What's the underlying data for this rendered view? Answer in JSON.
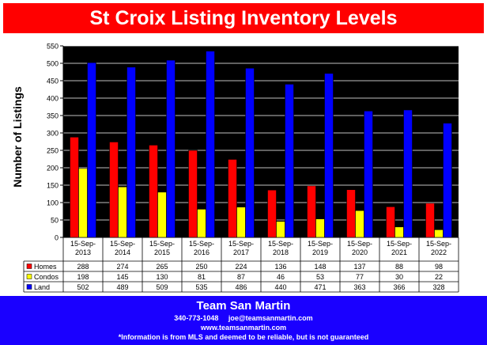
{
  "title": "St Croix Listing Inventory Levels",
  "footer": {
    "name": "Team San Martin",
    "phone": "340-773-1048",
    "email": "joe@teamsanmartin.com",
    "website": "www.teamsanmartin.com",
    "disclaimer": "*Information is from MLS and deemed to be reliable, but is not guaranteed"
  },
  "colors": {
    "title_bg": "#ff0000",
    "footer_bg": "#1a00ff",
    "plot_bg": "#000000"
  },
  "chart_data": {
    "type": "bar",
    "ylabel": "Number of Listings",
    "ylim": [
      0,
      550
    ],
    "yticks": [
      0,
      50,
      100,
      150,
      200,
      250,
      300,
      350,
      400,
      450,
      500,
      550
    ],
    "grid": true,
    "categories": [
      [
        "15-Sep-",
        "2013"
      ],
      [
        "15-Sep-",
        "2014"
      ],
      [
        "15-Sep-",
        "2015"
      ],
      [
        "15-Sep-",
        "2016"
      ],
      [
        "15-Sep-",
        "2017"
      ],
      [
        "15-Sep-",
        "2018"
      ],
      [
        "15-Sep-",
        "2019"
      ],
      [
        "15-Sep-",
        "2020"
      ],
      [
        "15-Sep-",
        "2021"
      ],
      [
        "15-Sep-",
        "2022"
      ]
    ],
    "series": [
      {
        "name": "Homes",
        "color": "#ff0000",
        "values": [
          288,
          274,
          265,
          250,
          224,
          136,
          148,
          137,
          88,
          98
        ]
      },
      {
        "name": "Condos",
        "color": "#ffff00",
        "values": [
          198,
          145,
          130,
          81,
          87,
          46,
          53,
          77,
          30,
          22
        ]
      },
      {
        "name": "Land",
        "color": "#0000ff",
        "values": [
          502,
          489,
          509,
          535,
          486,
          440,
          471,
          363,
          366,
          328
        ]
      }
    ]
  }
}
